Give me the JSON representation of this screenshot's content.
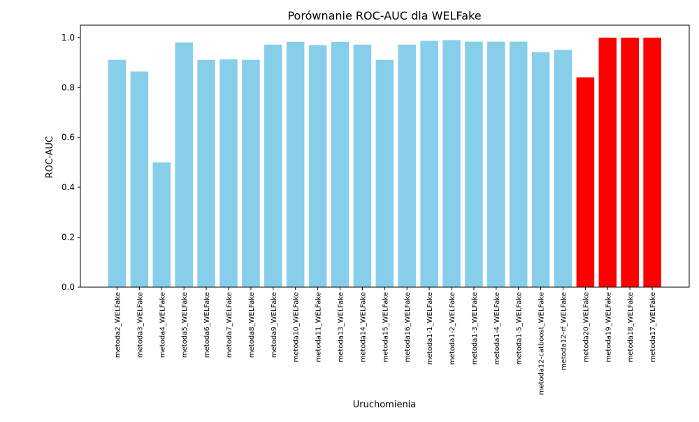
{
  "chart_data": {
    "type": "bar",
    "title": "Porównanie ROC-AUC dla WELFake",
    "xlabel": "Uruchomienia",
    "ylabel": "ROC-AUC",
    "ylim": [
      0,
      1.05
    ],
    "yticks": [
      0.0,
      0.2,
      0.4,
      0.6,
      0.8,
      1.0
    ],
    "ytick_labels": [
      "0.0",
      "0.2",
      "0.4",
      "0.6",
      "0.8",
      "1.0"
    ],
    "grid": false,
    "colors": {
      "default": "#87CEEB",
      "highlight": "#FF0000"
    },
    "categories": [
      "metoda2_WELFake",
      "metoda3_WELFake",
      "metoda4_WELFake",
      "metoda5_WELFake",
      "metoda6_WELFake",
      "metoda7_WELFake",
      "metoda8_WELFake",
      "metoda9_WELFake",
      "metoda10_WELFake",
      "metoda11_WELFake",
      "metoda13_WELFake",
      "metoda14_WELFake",
      "metoda15_WELFake",
      "metoda16_WELFake",
      "metoda1-1_WELFake",
      "metoda1-2_WELFake",
      "metoda1-3_WELFake",
      "metoda1-4_WELFake",
      "metoda1-5_WELFake",
      "metoda12-catboost_WELFake",
      "metoda12-rf_WELFake",
      "metoda20_WELFake",
      "metoda19_WELFake",
      "metoda18_WELFake",
      "metoda17_WELFake"
    ],
    "values": [
      0.911,
      0.864,
      0.5,
      0.981,
      0.911,
      0.913,
      0.911,
      0.972,
      0.983,
      0.97,
      0.983,
      0.972,
      0.911,
      0.972,
      0.987,
      0.99,
      0.984,
      0.984,
      0.984,
      0.942,
      0.951,
      0.841,
      1.0,
      1.0,
      1.0
    ],
    "bar_colors": [
      "#87CEEB",
      "#87CEEB",
      "#87CEEB",
      "#87CEEB",
      "#87CEEB",
      "#87CEEB",
      "#87CEEB",
      "#87CEEB",
      "#87CEEB",
      "#87CEEB",
      "#87CEEB",
      "#87CEEB",
      "#87CEEB",
      "#87CEEB",
      "#87CEEB",
      "#87CEEB",
      "#87CEEB",
      "#87CEEB",
      "#87CEEB",
      "#87CEEB",
      "#87CEEB",
      "#FF0000",
      "#FF0000",
      "#FF0000",
      "#FF0000"
    ]
  }
}
